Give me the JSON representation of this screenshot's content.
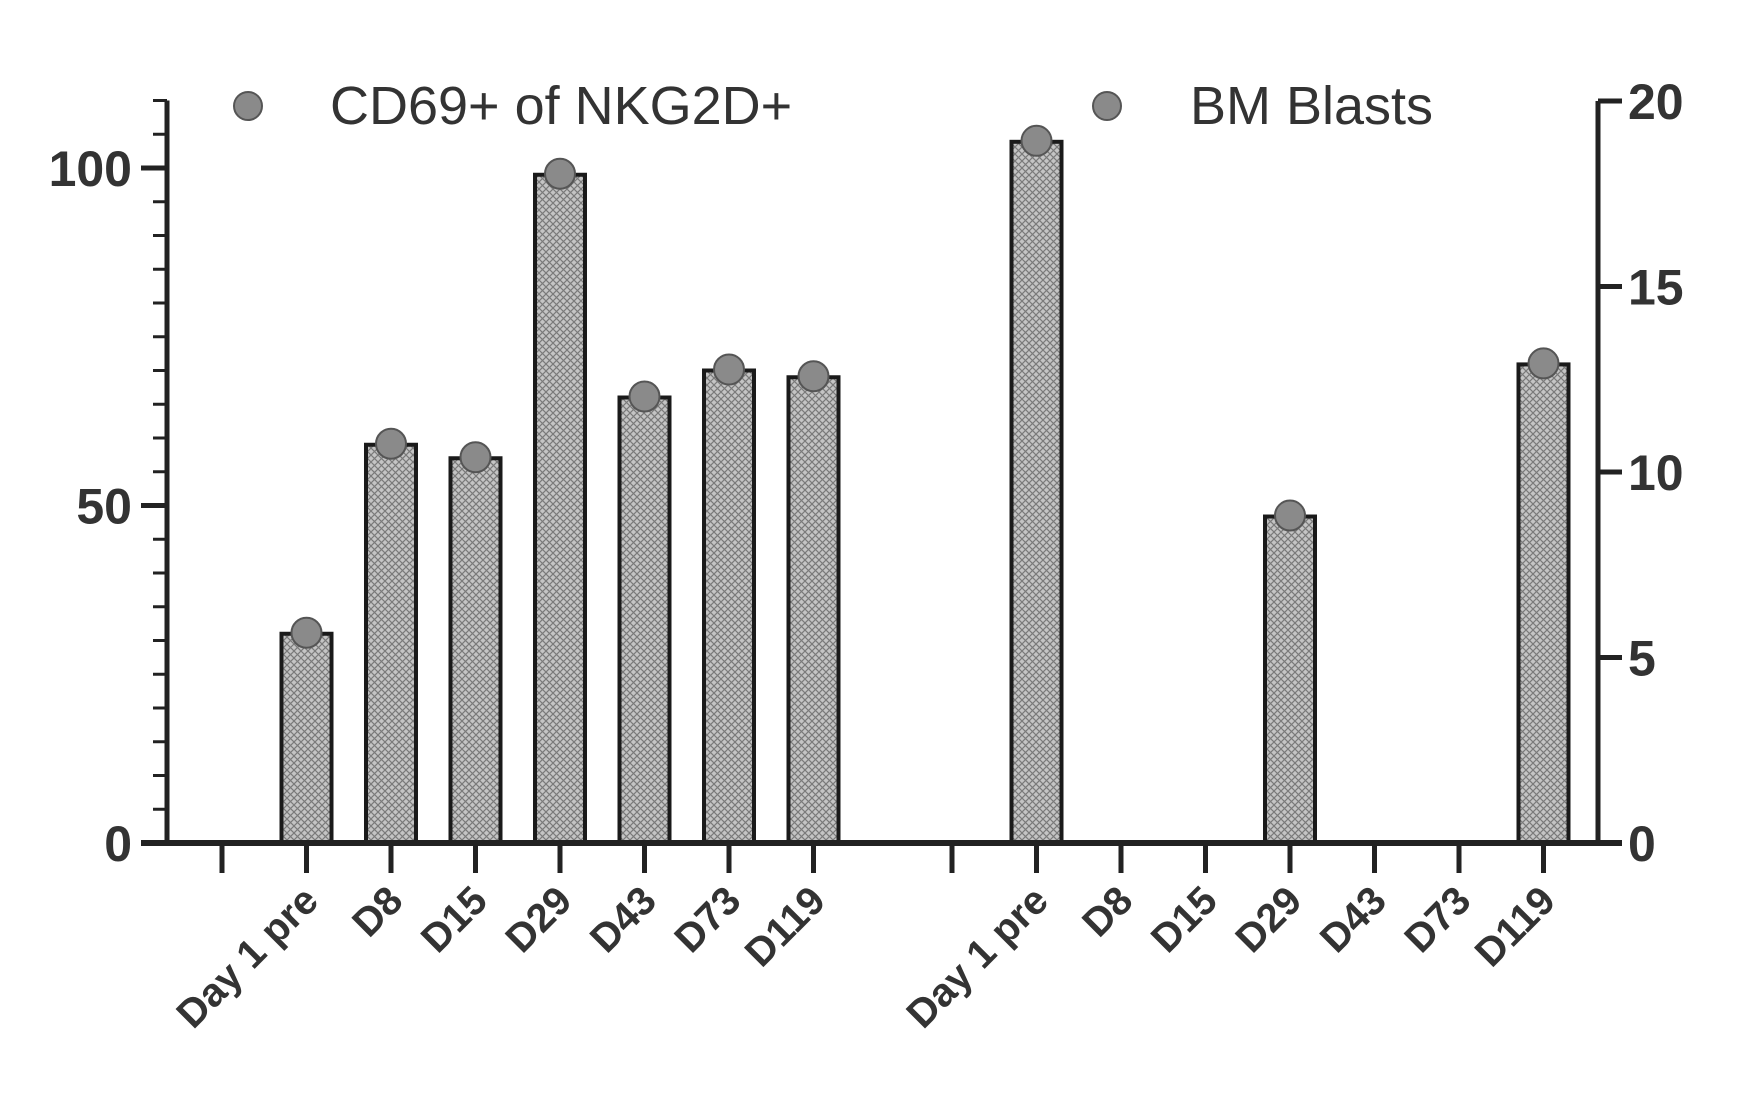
{
  "chart_data": {
    "type": "bar",
    "legend": [
      {
        "label": "CD69+ of NKG2D+",
        "marker": "circle"
      },
      {
        "label": "BM Blasts",
        "marker": "circle"
      }
    ],
    "left_axis": {
      "ylim": [
        0,
        110
      ],
      "ticks": [
        0,
        50,
        100
      ],
      "tick_labels": [
        "0",
        "50",
        "100"
      ],
      "minor_step": 5
    },
    "right_axis": {
      "ylim": [
        0,
        20
      ],
      "ticks": [
        0,
        5,
        10,
        15,
        20
      ],
      "tick_labels": [
        "0",
        "5",
        "10",
        "15",
        "20"
      ],
      "title": ""
    },
    "groups": [
      {
        "series": "CD69+ of NKG2D+",
        "axis": "left",
        "slots": [
          "",
          "Day 1 pre",
          "D8",
          "D15",
          "D29",
          "D43",
          "D73",
          "D119"
        ],
        "values": [
          null,
          31,
          59,
          57,
          99,
          66,
          70,
          69
        ]
      },
      {
        "series": "BM Blasts",
        "axis": "right",
        "slots": [
          "",
          "Day 1 pre",
          "D8",
          "D15",
          "D29",
          "D43",
          "D73",
          "D119"
        ],
        "values": [
          null,
          18.9,
          0,
          0,
          8.8,
          0,
          0,
          12.9
        ]
      }
    ],
    "colors": {
      "bar_fill": "#c4c4c4",
      "bar_hatch": "#7a7a7a",
      "axis": "#222222",
      "marker": "#8a8a8a"
    }
  }
}
